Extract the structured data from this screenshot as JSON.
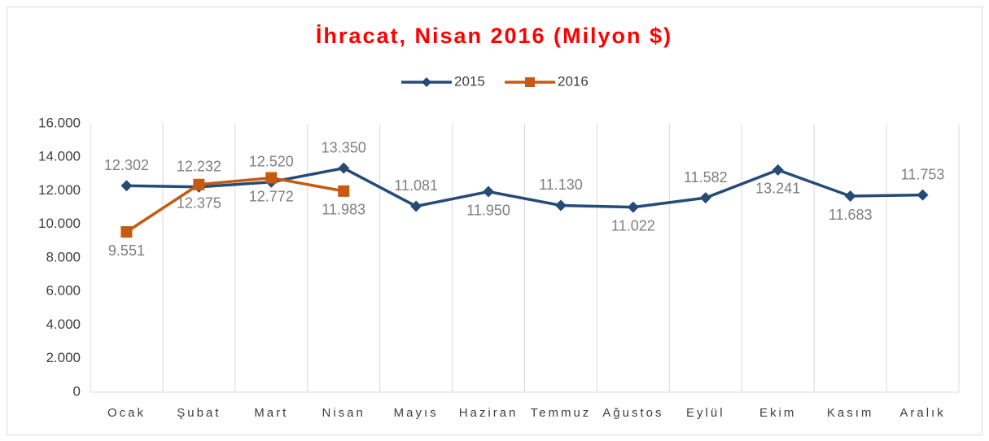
{
  "chart_data": {
    "type": "line",
    "title": "İhracat, Nisan 2016 (Milyon $)",
    "categories": [
      "Ocak",
      "Şubat",
      "Mart",
      "Nisan",
      "Mayıs",
      "Haziran",
      "Temmuz",
      "Ağustos",
      "Eylül",
      "Ekim",
      "Kasım",
      "Aralık"
    ],
    "series": [
      {
        "name": "2015",
        "color": "#264b77",
        "marker": "diamond",
        "values": [
          12302,
          12232,
          12520,
          13350,
          11081,
          11950,
          11130,
          11022,
          11582,
          13241,
          11683,
          11753
        ],
        "value_labels": [
          "12.302",
          "12.232",
          "12.520",
          "13.350",
          "11.081",
          "11.950",
          "11.130",
          "11.022",
          "11.582",
          "13.241",
          "11.683",
          "11.753"
        ]
      },
      {
        "name": "2016",
        "color": "#c55a11",
        "marker": "square",
        "values": [
          9551,
          12375,
          12772,
          11983,
          null,
          null,
          null,
          null,
          null,
          null,
          null,
          null
        ],
        "value_labels": [
          "9.551",
          "12.375",
          "12.772",
          "11.983",
          null,
          null,
          null,
          null,
          null,
          null,
          null,
          null
        ]
      }
    ],
    "ylim": [
      0,
      16000
    ],
    "yticks": [
      0,
      {
        "value": 2000,
        "label": "2.000"
      },
      {
        "value": 4000,
        "label": "4.000"
      },
      {
        "value": 6000,
        "label": "6.000"
      },
      {
        "value": 8000,
        "label": "8.000"
      },
      {
        "value": 10000,
        "label": "10.000"
      },
      {
        "value": 12000,
        "label": "12.000"
      },
      {
        "value": 14000,
        "label": "14.000"
      },
      {
        "value": 16000,
        "label": "16.000"
      }
    ],
    "grid": {
      "x": true,
      "y": false
    },
    "legend": "top"
  }
}
